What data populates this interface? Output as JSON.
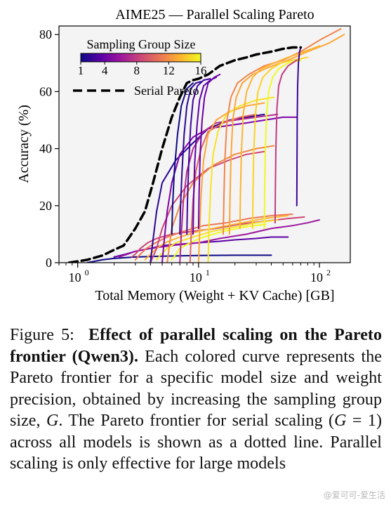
{
  "chart_data": {
    "type": "line",
    "title": "AIME25 — Parallel Scaling Pareto",
    "xlabel": "Total Memory (Weight + KV Cache) [GB]",
    "ylabel": "Accuracy (%)",
    "xscale": "log",
    "xlim": [
      0.7,
      180
    ],
    "ylim": [
      0,
      83
    ],
    "xticks": [
      1,
      10,
      100
    ],
    "xtick_labels": [
      {
        "base": "10",
        "exp": "0"
      },
      {
        "base": "10",
        "exp": "1"
      },
      {
        "base": "10",
        "exp": "2"
      }
    ],
    "yticks": [
      0,
      20,
      40,
      60,
      80
    ],
    "ytick_labels": [
      "0",
      "20",
      "40",
      "60",
      "80"
    ],
    "grid": false,
    "legend": {
      "placement": "top-left",
      "entries": [
        "Serial Pareto"
      ]
    },
    "colorbar": {
      "label": "Sampling Group Size",
      "ticks": [
        "1",
        "4",
        "8",
        "12",
        "16"
      ],
      "colors": [
        "#0d0887",
        "#5c01a6",
        "#9c179e",
        "#cc4778",
        "#ed7953",
        "#fdb42f",
        "#f0f921"
      ]
    },
    "series": [
      {
        "name": "Serial Pareto",
        "style": "dashed",
        "color": "#000000",
        "x": [
          0.85,
          1.2,
          1.6,
          2.0,
          2.4,
          3.0,
          3.6,
          4.2,
          5.0,
          6.0,
          7.0,
          8.0,
          9.0,
          10,
          12,
          15,
          20,
          25,
          30,
          40,
          50,
          60,
          70
        ],
        "y": [
          0,
          1,
          2.5,
          4.5,
          6,
          12,
          18,
          28,
          40,
          51,
          58,
          63,
          64,
          64.5,
          66,
          69,
          71,
          72,
          73,
          74,
          75,
          75.5,
          75.5
        ]
      },
      {
        "x": [
          1.2,
          1.6,
          2.0,
          3.0,
          5.0,
          10,
          20,
          40
        ],
        "y": [
          0,
          1,
          1.5,
          2,
          2.3,
          2.5,
          2.6,
          2.6
        ]
      },
      {
        "x": [
          2.0,
          2.5,
          3.0,
          4.0,
          5.0,
          7.0,
          10,
          15,
          20,
          30,
          40,
          55
        ],
        "y": [
          2,
          3,
          4,
          5,
          6,
          6.5,
          7,
          7.5,
          8,
          8.5,
          9,
          9
        ]
      },
      {
        "x": [
          2.2,
          2.6,
          3.0,
          4.0,
          6.0,
          10,
          15,
          25,
          40,
          60,
          80,
          100
        ],
        "y": [
          2,
          3,
          4,
          5,
          6,
          7,
          8.5,
          10,
          12,
          13,
          14,
          15
        ]
      },
      {
        "x": [
          2.8,
          3.0,
          3.3,
          3.8,
          4.5,
          6,
          9,
          14,
          22,
          35,
          55,
          75
        ],
        "y": [
          2,
          3,
          5,
          7,
          8.5,
          10,
          11,
          12,
          13.5,
          14.5,
          15.5,
          16
        ]
      },
      {
        "x": [
          3.0,
          3.3,
          3.7,
          4.4,
          5.5,
          7.5,
          11,
          17,
          26,
          40,
          60
        ],
        "y": [
          1,
          3,
          5,
          7,
          9,
          11,
          13,
          14,
          15.5,
          16.5,
          17
        ]
      },
      {
        "x": [
          3.6,
          4.0,
          4.5,
          5.3,
          7.0,
          10,
          15,
          23,
          35,
          55
        ],
        "y": [
          1,
          3,
          5,
          7,
          9,
          11,
          12.5,
          14,
          15.5,
          16.5
        ]
      },
      {
        "x": [
          4.5,
          4.9,
          5.5,
          6.5,
          9,
          13,
          20,
          30,
          45
        ],
        "y": [
          1,
          3,
          5,
          7,
          9,
          11,
          12.5,
          14,
          15
        ]
      },
      {
        "x": [
          6.0,
          6.5,
          7.0,
          8.5,
          11,
          16,
          24,
          36
        ],
        "y": [
          1,
          3,
          5,
          7,
          9,
          11,
          12.5,
          13.5
        ]
      },
      {
        "x": [
          4.0,
          4.5,
          5.0,
          6,
          8,
          12,
          18,
          25,
          35
        ],
        "y": [
          0,
          5,
          12,
          20,
          27,
          33,
          36,
          38,
          39
        ]
      },
      {
        "x": [
          5.5,
          5.7,
          6,
          7,
          9,
          13,
          20,
          30,
          42
        ],
        "y": [
          0,
          5,
          12,
          20,
          28,
          34,
          38,
          40,
          41
        ]
      },
      {
        "x": [
          4.0,
          4.2,
          4.5,
          5.0,
          6.5,
          9,
          12,
          18,
          25,
          35
        ],
        "y": [
          0,
          8,
          18,
          28,
          36,
          42,
          47,
          50,
          51,
          52
        ]
      },
      {
        "x": [
          5.0,
          5.2,
          5.5,
          6.0,
          7.0,
          9,
          12,
          17,
          25,
          35,
          50,
          65
        ],
        "y": [
          0,
          8,
          18,
          28,
          38,
          44,
          47,
          48,
          49,
          50,
          51,
          51
        ]
      },
      {
        "x": [
          7.0,
          7.2,
          7.5,
          8.0,
          9.0,
          11,
          14,
          20,
          30,
          45
        ],
        "y": [
          0,
          10,
          22,
          32,
          40,
          46,
          49,
          50,
          51,
          52
        ]
      },
      {
        "x": [
          8.5,
          8.7,
          9.0,
          9.5,
          10.5,
          12,
          16,
          22,
          30
        ],
        "y": [
          0,
          10,
          22,
          32,
          40,
          46,
          49,
          51,
          52
        ]
      },
      {
        "x": [
          10,
          10.2,
          10.5,
          11,
          12,
          14,
          18,
          25,
          35
        ],
        "y": [
          0,
          10,
          24,
          36,
          45,
          50,
          53,
          55,
          56
        ]
      },
      {
        "x": [
          12,
          12.2,
          12.6,
          13.2,
          14.5,
          17,
          22,
          30,
          42
        ],
        "y": [
          0,
          12,
          26,
          38,
          46,
          52,
          55,
          57,
          58
        ]
      },
      {
        "x": [
          6.0,
          6.1,
          6.3,
          6.7,
          7.2,
          8.0,
          9.0
        ],
        "y": [
          10,
          20,
          32,
          45,
          55,
          61,
          63
        ]
      },
      {
        "x": [
          7.0,
          7.1,
          7.3,
          7.6,
          8.0,
          8.6,
          9.5,
          10.5
        ],
        "y": [
          10,
          20,
          32,
          45,
          55,
          61,
          63,
          63.5
        ]
      },
      {
        "x": [
          8.0,
          8.1,
          8.3,
          8.6,
          9.0,
          9.8,
          11,
          12.5
        ],
        "y": [
          10,
          22,
          35,
          48,
          57,
          62,
          64,
          64.5
        ]
      },
      {
        "x": [
          9.0,
          9.1,
          9.3,
          9.7,
          10.2,
          11,
          12.5,
          14
        ],
        "y": [
          10,
          22,
          35,
          48,
          57,
          62,
          64,
          65
        ]
      },
      {
        "x": [
          10,
          10.1,
          10.3,
          10.7,
          11.2,
          12,
          13.5,
          15
        ],
        "y": [
          12,
          24,
          38,
          50,
          58,
          63,
          65,
          66
        ]
      },
      {
        "x": [
          16,
          16.2,
          16.5,
          17.2,
          18.5,
          21,
          26,
          35,
          50,
          70,
          100,
          150
        ],
        "y": [
          10,
          22,
          36,
          50,
          58,
          63,
          66,
          69,
          71,
          74,
          78,
          82
        ]
      },
      {
        "x": [
          18,
          18.2,
          18.5,
          19.2,
          20.5,
          23,
          28,
          38,
          55,
          80,
          120,
          160
        ],
        "y": [
          10,
          22,
          36,
          50,
          58,
          63,
          66,
          68.5,
          71,
          74,
          77,
          80
        ]
      },
      {
        "x": [
          22,
          22.2,
          22.6,
          23.4,
          25,
          28,
          33,
          42,
          55,
          75,
          100
        ],
        "y": [
          12,
          24,
          38,
          52,
          60,
          65,
          68,
          70,
          72,
          74,
          76
        ]
      },
      {
        "x": [
          28,
          28.2,
          28.6,
          29.5,
          31,
          34,
          40,
          48,
          60,
          80
        ],
        "y": [
          12,
          24,
          38,
          52,
          60,
          65,
          68,
          70,
          71,
          72
        ]
      },
      {
        "x": [
          35,
          35.2,
          35.6,
          36.5,
          38,
          41,
          46,
          55,
          70
        ],
        "y": [
          12,
          24,
          38,
          52,
          60,
          65,
          68,
          70,
          71
        ]
      },
      {
        "x": [
          43,
          43.2,
          43.6,
          44.5,
          46,
          49,
          55,
          65
        ],
        "y": [
          14,
          26,
          40,
          54,
          62,
          66,
          69,
          71
        ]
      },
      {
        "x": [
          65,
          65.2,
          65.5,
          66,
          67,
          68.5,
          70
        ],
        "y": [
          20,
          35,
          50,
          62,
          70,
          74,
          75.5
        ]
      }
    ],
    "series_colors": [
      null,
      "#0d0887",
      "#5c01a6",
      "#9c179e",
      "#cc4778",
      "#ed7953",
      "#fdb42f",
      "#f7e225",
      "#f0f921",
      "#cc4778",
      "#f08a40",
      "#2a0593",
      "#7e03a8",
      "#b12a90",
      "#e16462",
      "#fca636",
      "#f7e225",
      "#0d0887",
      "#2a0593",
      "#41049d",
      "#5c01a6",
      "#6a00a8",
      "#f2844b",
      "#fca636",
      "#fdb42f",
      "#fcd225",
      "#f0f921",
      "#c03a83",
      "#3a049a"
    ]
  },
  "caption": {
    "prefix": "Figure 5:",
    "bold": "Effect of parallel scaling on the Pareto frontier (Qwen3).",
    "text1": "Each colored curve represents the Pareto frontier for a specific model size and weight precision, obtained by increasing the sampling group size,",
    "var_g": "G",
    "text2": ". The Pareto frontier for serial scaling (",
    "var_g2": "G",
    "text3": " = 1) across all models is shown as a dotted line. Parallel scaling is only effective for large models"
  },
  "watermark": "@爱可可-爱生活"
}
